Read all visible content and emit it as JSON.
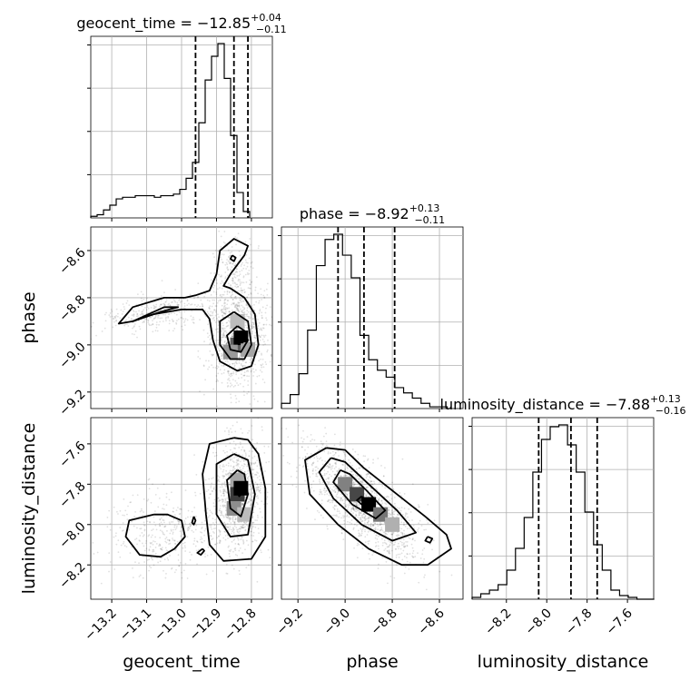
{
  "chart_data": {
    "type": "corner",
    "parameters": [
      "geocent_time",
      "phase",
      "luminosity_distance"
    ],
    "axis_labels": [
      "geocent_time",
      "phase",
      "luminosity_distance"
    ],
    "ranges": {
      "geocent_time": [
        -13.26,
        -12.74
      ],
      "phase": [
        -9.27,
        -8.5
      ],
      "luminosity_distance": [
        -8.37,
        -7.47
      ]
    },
    "ticks": {
      "geocent_time": [
        -13.2,
        -13.1,
        -13.0,
        -12.9,
        -12.8
      ],
      "phase": [
        -9.2,
        -9.0,
        -8.8,
        -8.6
      ],
      "luminosity_distance": [
        -8.2,
        -8.0,
        -7.8,
        -7.6
      ]
    },
    "tick_labels": {
      "geocent_time": [
        "−13.2",
        "−13.1",
        "−13.0",
        "−12.9",
        "−12.8"
      ],
      "phase": [
        "−9.2",
        "−9.0",
        "−8.8",
        "−8.6"
      ],
      "luminosity_distance": [
        "−8.2",
        "−8.0",
        "−7.8",
        "−7.6"
      ]
    },
    "grid": true,
    "diagonal": [
      {
        "parameter": "geocent_time",
        "title_name": "geocent_time",
        "median": "−12.85",
        "plus": "+0.04",
        "minus": "−0.11",
        "quantiles": [
          -12.96,
          -12.85,
          -12.81
        ],
        "bin_start": -13.26,
        "bin_width": 0.0182,
        "counts": [
          1,
          2,
          5,
          8,
          12,
          13,
          13,
          14,
          14,
          14,
          13,
          14,
          14,
          15,
          18,
          25,
          35,
          60,
          87,
          102,
          110,
          88,
          52,
          16,
          4
        ]
      },
      {
        "parameter": "phase",
        "title_name": "phase",
        "median": "−8.92",
        "plus": "+0.13",
        "minus": "−0.11",
        "quantiles": [
          -9.03,
          -8.92,
          -8.79
        ],
        "bin_start": -9.27,
        "bin_width": 0.037,
        "counts": [
          3,
          8,
          20,
          45,
          82,
          97,
          100,
          88,
          75,
          42,
          28,
          22,
          18,
          12,
          9,
          6,
          3,
          1,
          1
        ]
      },
      {
        "parameter": "luminosity_distance",
        "title_name": "luminosity_distance",
        "median": "−7.88",
        "plus": "+0.13",
        "minus": "−0.16",
        "quantiles": [
          -8.04,
          -7.88,
          -7.75
        ],
        "bin_start": -8.37,
        "bin_width": 0.043,
        "counts": [
          1,
          3,
          5,
          8,
          16,
          28,
          45,
          70,
          88,
          95,
          96,
          85,
          70,
          48,
          30,
          16,
          5,
          2,
          1,
          0,
          0
        ]
      }
    ],
    "pairs": [
      {
        "x": "geocent_time",
        "y": "phase",
        "point_clouds": [
          {
            "cx": -12.84,
            "cy": -8.96,
            "sx": 0.045,
            "sy": 0.12,
            "rho": 0.0,
            "n": 900
          },
          {
            "cx": -13.06,
            "cy": -8.86,
            "sx": 0.1,
            "sy": 0.045,
            "rho": 0.5,
            "n": 350
          },
          {
            "cx": -12.85,
            "cy": -8.68,
            "sx": 0.03,
            "sy": 0.09,
            "rho": 0.0,
            "n": 160
          }
        ],
        "density": [
          {
            "x": -12.84,
            "y": -8.9,
            "w": 0.2
          },
          {
            "x": -12.84,
            "y": -9.0,
            "w": 0.6
          },
          {
            "x": -12.83,
            "y": -8.97,
            "w": 1.0
          },
          {
            "x": -12.86,
            "y": -9.03,
            "w": 0.35
          },
          {
            "x": -12.81,
            "y": -9.02,
            "w": 0.3
          }
        ],
        "contours": [
          [
            [
              -12.99,
              -8.8
            ],
            [
              -13.05,
              -8.8
            ],
            [
              -13.14,
              -8.84
            ],
            [
              -13.18,
              -8.91
            ],
            [
              -13.14,
              -8.9
            ],
            [
              -13.08,
              -8.87
            ],
            [
              -13.0,
              -8.85
            ],
            [
              -12.94,
              -8.85
            ],
            [
              -12.92,
              -8.89
            ],
            [
              -12.91,
              -8.98
            ],
            [
              -12.89,
              -9.07
            ],
            [
              -12.84,
              -9.11
            ],
            [
              -12.8,
              -9.09
            ],
            [
              -12.78,
              -9.0
            ],
            [
              -12.79,
              -8.87
            ],
            [
              -12.82,
              -8.8
            ],
            [
              -12.86,
              -8.76
            ],
            [
              -12.88,
              -8.75
            ],
            [
              -12.86,
              -8.7
            ],
            [
              -12.82,
              -8.62
            ],
            [
              -12.81,
              -8.58
            ],
            [
              -12.85,
              -8.55
            ],
            [
              -12.89,
              -8.6
            ],
            [
              -12.9,
              -8.7
            ],
            [
              -12.92,
              -8.77
            ],
            [
              -12.96,
              -8.79
            ],
            [
              -12.99,
              -8.8
            ]
          ],
          [
            [
              -13.1,
              -8.88
            ],
            [
              -13.14,
              -8.9
            ],
            [
              -13.05,
              -8.84
            ],
            [
              -13.01,
              -8.84
            ],
            [
              -13.06,
              -8.86
            ],
            [
              -13.1,
              -8.88
            ]
          ],
          [
            [
              -12.85,
              -8.86
            ],
            [
              -12.89,
              -8.9
            ],
            [
              -12.89,
              -9.0
            ],
            [
              -12.86,
              -9.06
            ],
            [
              -12.82,
              -9.06
            ],
            [
              -12.8,
              -9.0
            ],
            [
              -12.81,
              -8.9
            ],
            [
              -12.85,
              -8.86
            ]
          ],
          [
            [
              -12.84,
              -8.92
            ],
            [
              -12.87,
              -8.96
            ],
            [
              -12.86,
              -9.02
            ],
            [
              -12.83,
              -9.03
            ],
            [
              -12.81,
              -8.98
            ],
            [
              -12.82,
              -8.94
            ],
            [
              -12.84,
              -8.92
            ]
          ],
          [
            [
              -12.83,
              -8.95
            ],
            [
              -12.845,
              -8.96
            ],
            [
              -12.84,
              -8.99
            ],
            [
              -12.825,
              -8.99
            ],
            [
              -12.82,
              -8.97
            ],
            [
              -12.83,
              -8.95
            ]
          ],
          [
            [
              -12.855,
              -8.62
            ],
            [
              -12.86,
              -8.635
            ],
            [
              -12.85,
              -8.645
            ],
            [
              -12.845,
              -8.63
            ],
            [
              -12.855,
              -8.62
            ]
          ]
        ]
      },
      {
        "x": "geocent_time",
        "y": "luminosity_distance",
        "point_clouds": [
          {
            "cx": -12.84,
            "cy": -7.86,
            "sx": 0.04,
            "sy": 0.14,
            "rho": 0.1,
            "n": 900
          },
          {
            "cx": -13.05,
            "cy": -8.05,
            "sx": 0.08,
            "sy": 0.1,
            "rho": 0.0,
            "n": 380
          }
        ],
        "density": [
          {
            "x": -12.84,
            "y": -7.78,
            "w": 0.3
          },
          {
            "x": -12.84,
            "y": -7.85,
            "w": 0.75
          },
          {
            "x": -12.83,
            "y": -7.82,
            "w": 1.0
          },
          {
            "x": -12.85,
            "y": -7.92,
            "w": 0.4
          },
          {
            "x": -12.82,
            "y": -7.95,
            "w": 0.2
          }
        ],
        "contours": [
          [
            [
              -12.85,
              -7.57
            ],
            [
              -12.92,
              -7.6
            ],
            [
              -12.94,
              -7.75
            ],
            [
              -12.93,
              -7.95
            ],
            [
              -12.92,
              -8.1
            ],
            [
              -12.88,
              -8.18
            ],
            [
              -12.8,
              -8.17
            ],
            [
              -12.76,
              -8.06
            ],
            [
              -12.76,
              -7.82
            ],
            [
              -12.78,
              -7.65
            ],
            [
              -12.81,
              -7.58
            ],
            [
              -12.85,
              -7.57
            ]
          ],
          [
            [
              -13.08,
              -7.95
            ],
            [
              -13.15,
              -7.98
            ],
            [
              -13.16,
              -8.06
            ],
            [
              -13.12,
              -8.15
            ],
            [
              -13.06,
              -8.16
            ],
            [
              -13.02,
              -8.12
            ],
            [
              -12.99,
              -8.06
            ],
            [
              -13.0,
              -7.98
            ],
            [
              -13.04,
              -7.95
            ],
            [
              -13.08,
              -7.95
            ]
          ],
          [
            [
              -12.85,
              -7.65
            ],
            [
              -12.9,
              -7.7
            ],
            [
              -12.9,
              -7.95
            ],
            [
              -12.86,
              -8.06
            ],
            [
              -12.81,
              -8.05
            ],
            [
              -12.79,
              -7.85
            ],
            [
              -12.81,
              -7.68
            ],
            [
              -12.85,
              -7.65
            ]
          ],
          [
            [
              -12.84,
              -7.73
            ],
            [
              -12.87,
              -7.78
            ],
            [
              -12.86,
              -7.92
            ],
            [
              -12.83,
              -7.96
            ],
            [
              -12.81,
              -7.85
            ],
            [
              -12.82,
              -7.75
            ],
            [
              -12.84,
              -7.73
            ]
          ],
          [
            [
              -12.835,
              -7.8
            ],
            [
              -12.845,
              -7.83
            ],
            [
              -12.835,
              -7.86
            ],
            [
              -12.825,
              -7.84
            ],
            [
              -12.835,
              -7.8
            ]
          ],
          [
            [
              -12.965,
              -7.96
            ],
            [
              -12.97,
              -7.99
            ],
            [
              -12.965,
              -8.0
            ],
            [
              -12.96,
              -7.98
            ],
            [
              -12.965,
              -7.96
            ]
          ],
          [
            [
              -12.94,
              -8.12
            ],
            [
              -12.955,
              -8.14
            ],
            [
              -12.945,
              -8.15
            ],
            [
              -12.935,
              -8.13
            ],
            [
              -12.94,
              -8.12
            ]
          ]
        ]
      },
      {
        "x": "phase",
        "y": "luminosity_distance",
        "point_clouds": [
          {
            "cx": -8.92,
            "cy": -7.9,
            "sx": 0.13,
            "sy": 0.15,
            "rho": -0.75,
            "n": 1300
          }
        ],
        "density": [
          {
            "x": -9.0,
            "y": -7.8,
            "w": 0.45
          },
          {
            "x": -8.95,
            "y": -7.85,
            "w": 0.7
          },
          {
            "x": -8.9,
            "y": -7.9,
            "w": 1.0
          },
          {
            "x": -8.85,
            "y": -7.95,
            "w": 0.5
          },
          {
            "x": -8.8,
            "y": -8.0,
            "w": 0.25
          }
        ],
        "contours": [
          [
            [
              -9.08,
              -7.62
            ],
            [
              -9.17,
              -7.68
            ],
            [
              -9.15,
              -7.85
            ],
            [
              -9.03,
              -8.0
            ],
            [
              -8.9,
              -8.12
            ],
            [
              -8.76,
              -8.2
            ],
            [
              -8.65,
              -8.2
            ],
            [
              -8.55,
              -8.12
            ],
            [
              -8.57,
              -8.05
            ],
            [
              -8.66,
              -7.96
            ],
            [
              -8.78,
              -7.85
            ],
            [
              -8.92,
              -7.72
            ],
            [
              -9.0,
              -7.63
            ],
            [
              -9.08,
              -7.62
            ]
          ],
          [
            [
              -9.06,
              -7.67
            ],
            [
              -9.11,
              -7.74
            ],
            [
              -9.05,
              -7.87
            ],
            [
              -8.93,
              -8.0
            ],
            [
              -8.8,
              -8.08
            ],
            [
              -8.7,
              -8.04
            ],
            [
              -8.78,
              -7.93
            ],
            [
              -8.9,
              -7.8
            ],
            [
              -9.0,
              -7.69
            ],
            [
              -9.06,
              -7.67
            ]
          ],
          [
            [
              -9.02,
              -7.73
            ],
            [
              -9.05,
              -7.79
            ],
            [
              -8.97,
              -7.9
            ],
            [
              -8.87,
              -7.97
            ],
            [
              -8.83,
              -7.93
            ],
            [
              -8.91,
              -7.83
            ],
            [
              -8.98,
              -7.75
            ],
            [
              -9.02,
              -7.73
            ]
          ],
          [
            [
              -8.93,
              -7.86
            ],
            [
              -8.95,
              -7.88
            ],
            [
              -8.92,
              -7.91
            ],
            [
              -8.9,
              -7.89
            ],
            [
              -8.93,
              -7.86
            ]
          ],
          [
            [
              -8.65,
              -8.06
            ],
            [
              -8.66,
              -8.08
            ],
            [
              -8.64,
              -8.09
            ],
            [
              -8.63,
              -8.07
            ],
            [
              -8.65,
              -8.06
            ]
          ]
        ]
      }
    ]
  }
}
